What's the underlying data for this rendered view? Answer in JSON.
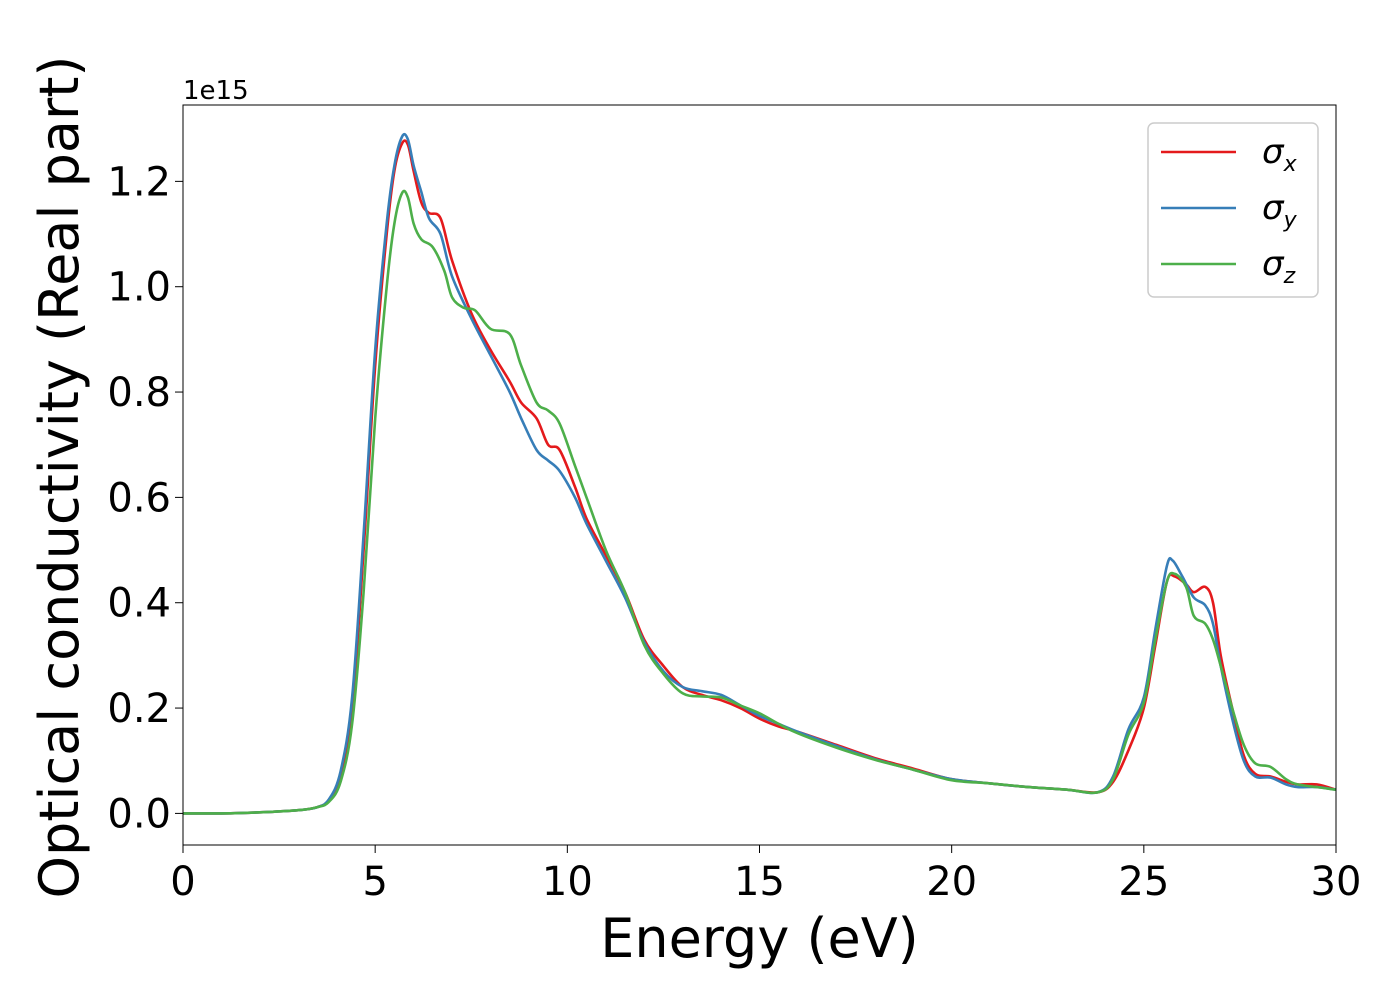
{
  "chart_data": {
    "type": "line",
    "title": "",
    "xlabel": "Energy (eV)",
    "ylabel": "Optical conductivity (Real part)",
    "y_offset_label": "1e15",
    "xlim": [
      0,
      30
    ],
    "ylim": [
      -0.06,
      1.345
    ],
    "x_ticks": [
      0,
      5,
      10,
      15,
      20,
      25,
      30
    ],
    "x_tick_labels": [
      "0",
      "5",
      "10",
      "15",
      "20",
      "25",
      "30"
    ],
    "y_ticks": [
      0.0,
      0.2,
      0.4,
      0.6,
      0.8,
      1.0,
      1.2
    ],
    "y_tick_labels": [
      "0.0",
      "0.2",
      "0.4",
      "0.6",
      "0.8",
      "1.0",
      "1.2"
    ],
    "grid": false,
    "legend_position": "top-right",
    "series": [
      {
        "name": "σx",
        "label_base": "σ",
        "label_sub": "x",
        "color": "#e41a1c",
        "points": [
          [
            0,
            0
          ],
          [
            1,
            0
          ],
          [
            2,
            0.002
          ],
          [
            3,
            0.006
          ],
          [
            3.5,
            0.012
          ],
          [
            3.8,
            0.025
          ],
          [
            4.1,
            0.07
          ],
          [
            4.4,
            0.2
          ],
          [
            4.7,
            0.5
          ],
          [
            5.0,
            0.85
          ],
          [
            5.3,
            1.1
          ],
          [
            5.5,
            1.22
          ],
          [
            5.7,
            1.272
          ],
          [
            5.85,
            1.27
          ],
          [
            6.0,
            1.22
          ],
          [
            6.2,
            1.16
          ],
          [
            6.4,
            1.14
          ],
          [
            6.7,
            1.13
          ],
          [
            7.0,
            1.05
          ],
          [
            7.5,
            0.95
          ],
          [
            8.0,
            0.88
          ],
          [
            8.5,
            0.82
          ],
          [
            8.8,
            0.78
          ],
          [
            9.2,
            0.75
          ],
          [
            9.5,
            0.7
          ],
          [
            9.8,
            0.69
          ],
          [
            10.2,
            0.62
          ],
          [
            10.5,
            0.56
          ],
          [
            11.0,
            0.49
          ],
          [
            11.5,
            0.42
          ],
          [
            12.0,
            0.33
          ],
          [
            12.5,
            0.28
          ],
          [
            13.0,
            0.24
          ],
          [
            13.5,
            0.225
          ],
          [
            14.0,
            0.215
          ],
          [
            14.5,
            0.2
          ],
          [
            15.0,
            0.18
          ],
          [
            15.5,
            0.165
          ],
          [
            16.0,
            0.155
          ],
          [
            17.0,
            0.13
          ],
          [
            18.0,
            0.105
          ],
          [
            19.0,
            0.085
          ],
          [
            20.0,
            0.065
          ],
          [
            21.0,
            0.057
          ],
          [
            22.0,
            0.05
          ],
          [
            23.0,
            0.045
          ],
          [
            23.8,
            0.04
          ],
          [
            24.2,
            0.06
          ],
          [
            24.6,
            0.12
          ],
          [
            25.0,
            0.2
          ],
          [
            25.3,
            0.32
          ],
          [
            25.6,
            0.44
          ],
          [
            25.8,
            0.45
          ],
          [
            26.1,
            0.435
          ],
          [
            26.3,
            0.42
          ],
          [
            26.6,
            0.43
          ],
          [
            26.8,
            0.4
          ],
          [
            27.0,
            0.3
          ],
          [
            27.3,
            0.2
          ],
          [
            27.6,
            0.11
          ],
          [
            27.9,
            0.075
          ],
          [
            28.3,
            0.07
          ],
          [
            28.7,
            0.06
          ],
          [
            29.0,
            0.055
          ],
          [
            29.5,
            0.055
          ],
          [
            30.0,
            0.045
          ]
        ]
      },
      {
        "name": "σy",
        "label_base": "σ",
        "label_sub": "y",
        "color": "#377eb8",
        "points": [
          [
            0,
            0
          ],
          [
            1,
            0
          ],
          [
            2,
            0.002
          ],
          [
            3,
            0.006
          ],
          [
            3.5,
            0.012
          ],
          [
            3.8,
            0.027
          ],
          [
            4.1,
            0.08
          ],
          [
            4.4,
            0.22
          ],
          [
            4.7,
            0.53
          ],
          [
            5.0,
            0.88
          ],
          [
            5.3,
            1.12
          ],
          [
            5.5,
            1.23
          ],
          [
            5.7,
            1.285
          ],
          [
            5.85,
            1.28
          ],
          [
            6.0,
            1.23
          ],
          [
            6.2,
            1.18
          ],
          [
            6.4,
            1.13
          ],
          [
            6.7,
            1.1
          ],
          [
            7.0,
            1.02
          ],
          [
            7.5,
            0.94
          ],
          [
            8.0,
            0.87
          ],
          [
            8.5,
            0.8
          ],
          [
            8.8,
            0.75
          ],
          [
            9.2,
            0.69
          ],
          [
            9.5,
            0.67
          ],
          [
            9.8,
            0.65
          ],
          [
            10.2,
            0.6
          ],
          [
            10.5,
            0.55
          ],
          [
            11.0,
            0.48
          ],
          [
            11.5,
            0.41
          ],
          [
            12.0,
            0.325
          ],
          [
            12.5,
            0.27
          ],
          [
            13.0,
            0.24
          ],
          [
            13.5,
            0.232
          ],
          [
            14.0,
            0.225
          ],
          [
            14.5,
            0.205
          ],
          [
            15.0,
            0.185
          ],
          [
            15.5,
            0.17
          ],
          [
            16.0,
            0.155
          ],
          [
            17.0,
            0.128
          ],
          [
            18.0,
            0.103
          ],
          [
            19.0,
            0.083
          ],
          [
            20.0,
            0.065
          ],
          [
            21.0,
            0.057
          ],
          [
            22.0,
            0.05
          ],
          [
            23.0,
            0.045
          ],
          [
            23.8,
            0.04
          ],
          [
            24.2,
            0.07
          ],
          [
            24.6,
            0.16
          ],
          [
            25.0,
            0.22
          ],
          [
            25.3,
            0.35
          ],
          [
            25.6,
            0.47
          ],
          [
            25.75,
            0.48
          ],
          [
            26.0,
            0.45
          ],
          [
            26.3,
            0.41
          ],
          [
            26.6,
            0.395
          ],
          [
            26.8,
            0.36
          ],
          [
            27.0,
            0.28
          ],
          [
            27.3,
            0.18
          ],
          [
            27.6,
            0.1
          ],
          [
            27.9,
            0.07
          ],
          [
            28.3,
            0.068
          ],
          [
            28.7,
            0.055
          ],
          [
            29.0,
            0.05
          ],
          [
            29.5,
            0.05
          ],
          [
            30.0,
            0.045
          ]
        ]
      },
      {
        "name": "σz",
        "label_base": "σ",
        "label_sub": "z",
        "color": "#4daf4a",
        "points": [
          [
            0,
            0
          ],
          [
            1,
            0
          ],
          [
            2,
            0.002
          ],
          [
            3,
            0.006
          ],
          [
            3.5,
            0.012
          ],
          [
            3.8,
            0.022
          ],
          [
            4.1,
            0.06
          ],
          [
            4.4,
            0.17
          ],
          [
            4.7,
            0.42
          ],
          [
            5.0,
            0.75
          ],
          [
            5.3,
            1.0
          ],
          [
            5.5,
            1.12
          ],
          [
            5.7,
            1.178
          ],
          [
            5.85,
            1.17
          ],
          [
            6.0,
            1.12
          ],
          [
            6.2,
            1.09
          ],
          [
            6.5,
            1.075
          ],
          [
            6.8,
            1.03
          ],
          [
            7.0,
            0.98
          ],
          [
            7.3,
            0.96
          ],
          [
            7.6,
            0.955
          ],
          [
            8.0,
            0.92
          ],
          [
            8.5,
            0.91
          ],
          [
            8.8,
            0.85
          ],
          [
            9.2,
            0.78
          ],
          [
            9.5,
            0.765
          ],
          [
            9.8,
            0.74
          ],
          [
            10.2,
            0.66
          ],
          [
            10.5,
            0.6
          ],
          [
            11.0,
            0.5
          ],
          [
            11.5,
            0.42
          ],
          [
            12.0,
            0.32
          ],
          [
            12.5,
            0.265
          ],
          [
            13.0,
            0.228
          ],
          [
            13.5,
            0.222
          ],
          [
            14.0,
            0.22
          ],
          [
            14.5,
            0.205
          ],
          [
            15.0,
            0.19
          ],
          [
            15.5,
            0.17
          ],
          [
            16.0,
            0.152
          ],
          [
            17.0,
            0.125
          ],
          [
            18.0,
            0.102
          ],
          [
            19.0,
            0.083
          ],
          [
            20.0,
            0.063
          ],
          [
            21.0,
            0.057
          ],
          [
            22.0,
            0.05
          ],
          [
            23.0,
            0.045
          ],
          [
            23.8,
            0.04
          ],
          [
            24.2,
            0.065
          ],
          [
            24.6,
            0.15
          ],
          [
            25.0,
            0.21
          ],
          [
            25.3,
            0.33
          ],
          [
            25.6,
            0.44
          ],
          [
            25.8,
            0.455
          ],
          [
            26.1,
            0.43
          ],
          [
            26.3,
            0.375
          ],
          [
            26.6,
            0.36
          ],
          [
            26.8,
            0.33
          ],
          [
            27.0,
            0.28
          ],
          [
            27.3,
            0.2
          ],
          [
            27.6,
            0.13
          ],
          [
            27.9,
            0.095
          ],
          [
            28.3,
            0.088
          ],
          [
            28.7,
            0.065
          ],
          [
            29.0,
            0.055
          ],
          [
            29.5,
            0.05
          ],
          [
            30.0,
            0.045
          ]
        ]
      }
    ]
  }
}
